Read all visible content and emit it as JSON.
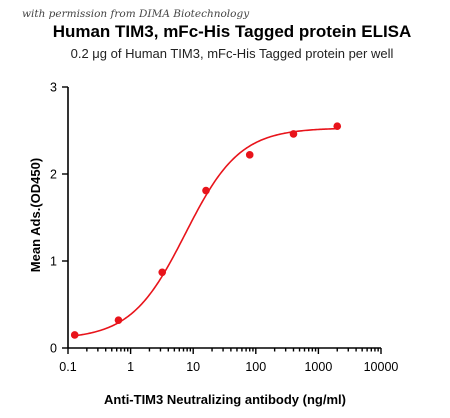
{
  "watermark": "with permission from DIMA Biotechnology",
  "chart_data": {
    "type": "scatter",
    "title": "Human TIM3, mFc-His Tagged protein ELISA",
    "subtitle": "0.2 μg of Human TIM3, mFc-His Tagged protein per well",
    "xlabel": "Anti-TIM3 Neutralizing antibody (ng/ml)",
    "ylabel": "Mean Ads.(OD450)",
    "xscale": "log",
    "xlim": [
      0.1,
      10000
    ],
    "ylim": [
      0,
      3
    ],
    "x_ticks": [
      "0.1",
      "1",
      "10",
      "100",
      "1000",
      "10000"
    ],
    "x_tick_values": [
      0.1,
      1,
      10,
      100,
      1000,
      10000
    ],
    "y_ticks": [
      "0",
      "1",
      "2",
      "3"
    ],
    "y_tick_values": [
      0,
      1,
      2,
      3
    ],
    "grid": false,
    "colors": {
      "series": "#e8141b",
      "axis": "#000000"
    },
    "series": [
      {
        "x": [
          0.128,
          0.64,
          3.2,
          16,
          80,
          400,
          2000
        ],
        "y": [
          0.15,
          0.32,
          0.87,
          1.81,
          2.22,
          2.46,
          2.55
        ],
        "fit": "4PL",
        "fit_params": {
          "bottom": 0.1,
          "top": 2.53,
          "ec50": 7.5,
          "hill": 1.0
        }
      }
    ]
  }
}
